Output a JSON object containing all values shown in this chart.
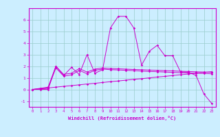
{
  "bg_color": "#cceeff",
  "line_color": "#cc00cc",
  "grid_color": "#99cccc",
  "xlabel": "Windchill (Refroidissement éolien,°C)",
  "xlim": [
    -0.5,
    23.5
  ],
  "ylim": [
    -1.5,
    7.0
  ],
  "xticks": [
    0,
    1,
    2,
    3,
    4,
    5,
    6,
    7,
    8,
    9,
    10,
    11,
    12,
    13,
    14,
    15,
    16,
    17,
    18,
    19,
    20,
    21,
    22,
    23
  ],
  "yticks": [
    -1,
    0,
    1,
    2,
    3,
    4,
    5,
    6
  ],
  "series": [
    [
      0.0,
      0.0,
      0.0,
      2.0,
      1.2,
      1.9,
      1.3,
      3.0,
      1.4,
      1.7,
      5.3,
      6.3,
      6.3,
      5.3,
      2.1,
      3.3,
      3.8,
      2.9,
      2.9,
      1.5,
      1.5,
      1.2,
      -0.4,
      -1.2
    ],
    [
      0.0,
      0.1,
      0.2,
      2.0,
      1.3,
      1.4,
      1.8,
      1.5,
      1.75,
      1.85,
      1.8,
      1.78,
      1.75,
      1.72,
      1.7,
      1.67,
      1.65,
      1.62,
      1.6,
      1.57,
      1.55,
      1.52,
      1.5,
      1.48
    ],
    [
      0.0,
      0.07,
      0.13,
      0.2,
      0.27,
      0.33,
      0.4,
      0.47,
      0.53,
      0.6,
      0.67,
      0.73,
      0.8,
      0.87,
      0.93,
      1.0,
      1.07,
      1.13,
      1.2,
      1.27,
      1.33,
      1.4,
      1.47,
      1.53
    ],
    [
      0.0,
      0.05,
      0.1,
      1.85,
      1.15,
      1.25,
      1.65,
      1.35,
      1.65,
      1.75,
      1.7,
      1.68,
      1.65,
      1.62,
      1.58,
      1.55,
      1.53,
      1.5,
      1.47,
      1.45,
      1.42,
      1.4,
      1.38,
      1.35
    ]
  ]
}
